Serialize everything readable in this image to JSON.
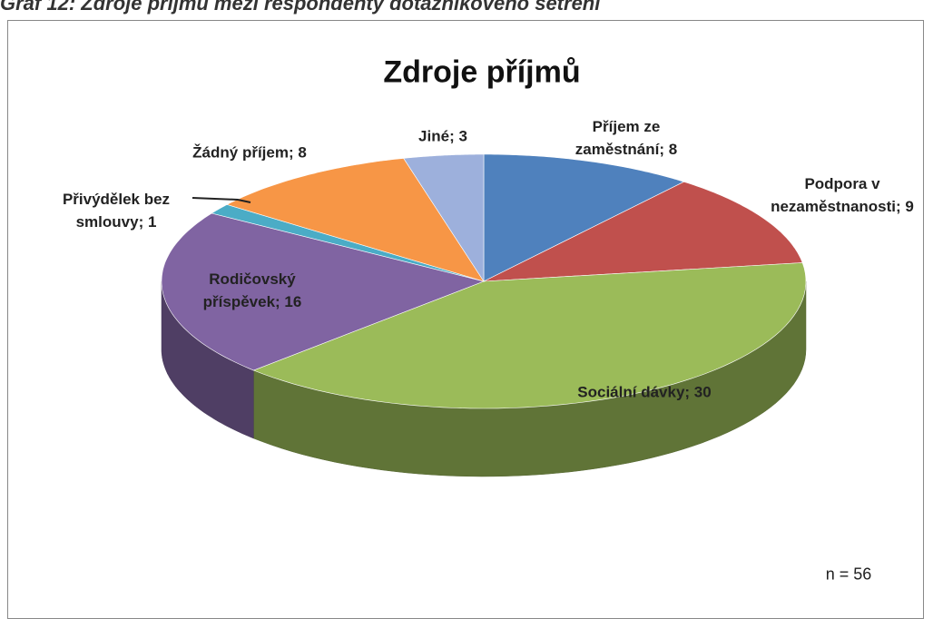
{
  "caption": "Graf 12: Zdroje příjmů mezi respondenty dotazníkového šetření",
  "chart_data": {
    "type": "pie",
    "title": "Zdroje příjmů",
    "categories": [
      "Příjem ze zaměstnání",
      "Podpora v nezaměstnanosti",
      "Sociální dávky",
      "Rodičovský příspěvek",
      "Přivýdělek bez smlouvy",
      "Žádný příjem",
      "Jiné"
    ],
    "values": [
      8,
      9,
      30,
      16,
      1,
      8,
      3
    ],
    "colors": [
      "#4f81bd",
      "#c0504d",
      "#9bbb59",
      "#8064a2",
      "#4bacc6",
      "#f79646",
      "#9db0dc"
    ],
    "label_separator": "; ",
    "note": "n = 56"
  }
}
